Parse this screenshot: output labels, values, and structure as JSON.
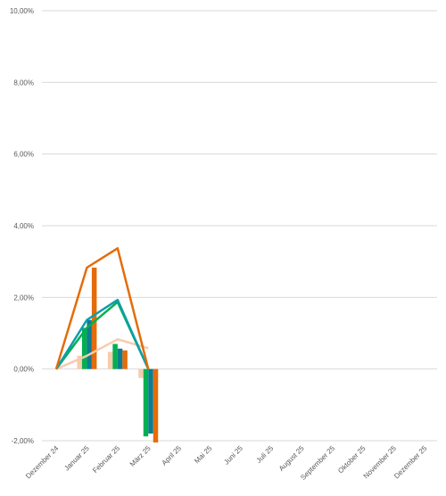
{
  "chart_data": {
    "type": "bar",
    "title": "",
    "xlabel": "",
    "ylabel": "",
    "ylim": [
      -0.02,
      0.1
    ],
    "y_ticks": [
      {
        "value": 0.1,
        "label": "10,00%"
      },
      {
        "value": 0.08,
        "label": "8,00%"
      },
      {
        "value": 0.06,
        "label": "6,00%"
      },
      {
        "value": 0.04,
        "label": "4,00%"
      },
      {
        "value": 0.02,
        "label": "2,00%"
      },
      {
        "value": 0.0,
        "label": "0,00%"
      },
      {
        "value": -0.02,
        "label": "-2,00%"
      }
    ],
    "categories": [
      "Dezember 24",
      "Januar 25",
      "Februar 25",
      "März 25",
      "April 25",
      "Mai 25",
      "Juni 25",
      "Juli 25",
      "August 25",
      "September 25",
      "Oktober 25",
      "November 25",
      "Dezember 25"
    ],
    "grid": true,
    "legend": "none",
    "bar_series": [
      {
        "color": "#f8cbad",
        "values": [
          0,
          0.0037,
          0.0048,
          -0.0025
        ]
      },
      {
        "color": "#00b050",
        "values": [
          0,
          0.0115,
          0.007,
          -0.0188
        ]
      },
      {
        "color": "#0e7c91",
        "values": [
          0,
          0.0137,
          0.0057,
          -0.018
        ]
      },
      {
        "color": "#e46c0a",
        "values": [
          0,
          0.0283,
          0.0052,
          -0.0205
        ]
      }
    ],
    "line_series": [
      {
        "color": "#f8cbad",
        "values": [
          0,
          0.0037,
          0.0083,
          0.0058
        ]
      },
      {
        "color": "#00b050",
        "values": [
          0,
          0.0115,
          0.0187,
          0.0
        ]
      },
      {
        "color": "#0e9eab",
        "values": [
          0,
          0.0137,
          0.0193,
          0.0
        ]
      },
      {
        "color": "#e46c0a",
        "values": [
          0,
          0.0283,
          0.0337,
          0.0
        ]
      }
    ],
    "colors": {
      "grid": "#d9d9d9",
      "axis_text": "#595959"
    }
  }
}
